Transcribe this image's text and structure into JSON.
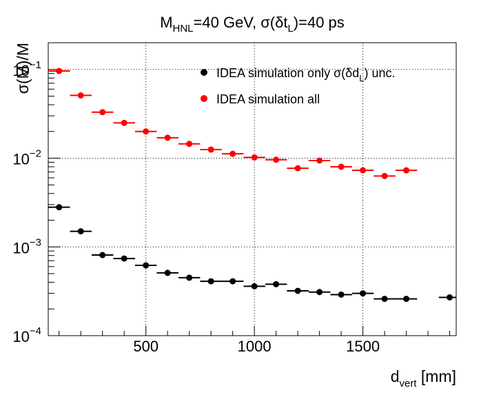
{
  "chart_data": {
    "type": "scatter",
    "title": {
      "main": "M",
      "main_sub": "HNL",
      "rest": "=40 GeV, σ(δt",
      "rest_sub": "L",
      "end": ")=40 ps"
    },
    "xlabel": {
      "main": "d",
      "sub": "vert",
      "rest": " [mm]"
    },
    "ylabel": "σ(M)/M",
    "xlim": [
      50,
      1930
    ],
    "ylim": [
      0.0001,
      0.2
    ],
    "yscale": "log",
    "grid": true,
    "x_ticks": [
      500,
      1000,
      1500
    ],
    "x_tick_labels": [
      "500",
      "1000",
      "1500"
    ],
    "y_ticks": [
      0.1,
      0.01,
      0.001,
      0.0001
    ],
    "y_tick_labels": [
      {
        "base": "10",
        "exp": "−1"
      },
      {
        "base": "10",
        "exp": "−2"
      },
      {
        "base": "10",
        "exp": "−3"
      },
      {
        "base": "10",
        "exp": "−4"
      }
    ],
    "legend_position": "top-right",
    "x_half_width": 50,
    "series": [
      {
        "name": {
          "main": "IDEA simulation only σ(δd",
          "sub": "L",
          "end": ") unc."
        },
        "color": "#000000",
        "x": [
          100,
          200,
          300,
          400,
          500,
          600,
          700,
          800,
          900,
          1000,
          1100,
          1200,
          1300,
          1400,
          1500,
          1600,
          1700,
          1900
        ],
        "y": [
          0.0028,
          0.0015,
          0.00081,
          0.00074,
          0.00062,
          0.00051,
          0.00045,
          0.00041,
          0.00041,
          0.00036,
          0.00038,
          0.00032,
          0.00031,
          0.00029,
          0.0003,
          0.00026,
          0.00026,
          0.00027
        ]
      },
      {
        "name": {
          "main": "IDEA simulation all",
          "sub": "",
          "end": ""
        },
        "color": "#ff0000",
        "x": [
          100,
          200,
          300,
          400,
          500,
          600,
          700,
          800,
          900,
          1000,
          1100,
          1200,
          1300,
          1400,
          1500,
          1600,
          1700
        ],
        "y": [
          0.096,
          0.051,
          0.033,
          0.025,
          0.02,
          0.017,
          0.0145,
          0.0125,
          0.0112,
          0.0102,
          0.0096,
          0.0077,
          0.0094,
          0.008,
          0.0073,
          0.0063,
          0.0073
        ]
      }
    ]
  }
}
